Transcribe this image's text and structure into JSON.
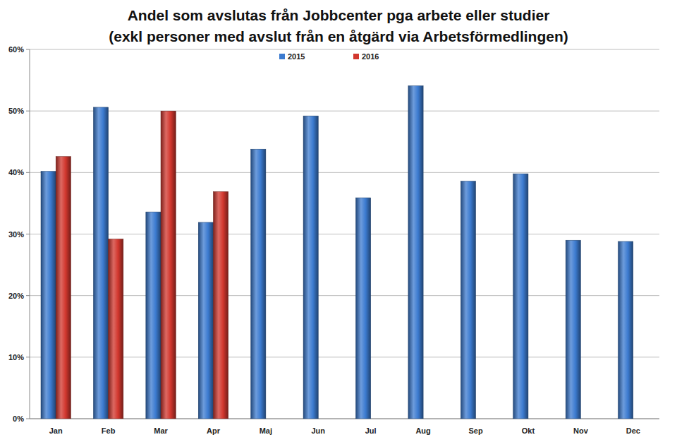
{
  "chart_data": {
    "type": "bar",
    "title": "Andel som avslutas från Jobbcenter pga arbete eller studier",
    "subtitle": "(exkl personer med avslut från en åtgärd via Arbetsförmedlingen)",
    "categories": [
      "Jan",
      "Feb",
      "Mar",
      "Apr",
      "Maj",
      "Jun",
      "Jul",
      "Aug",
      "Sep",
      "Okt",
      "Nov",
      "Dec"
    ],
    "series": [
      {
        "name": "2015",
        "color": "#3c7bd0",
        "values": [
          40.2,
          50.6,
          33.6,
          31.9,
          43.8,
          49.2,
          35.9,
          54.1,
          38.6,
          39.8,
          29.0,
          28.8
        ]
      },
      {
        "name": "2016",
        "color": "#d2372e",
        "values": [
          42.6,
          29.2,
          50.0,
          36.9,
          null,
          null,
          null,
          null,
          null,
          null,
          null,
          null
        ]
      }
    ],
    "ylim": [
      0,
      60
    ],
    "yticks": [
      {
        "value": 0,
        "label": "0%"
      },
      {
        "value": 10,
        "label": "10%"
      },
      {
        "value": 20,
        "label": "20%"
      },
      {
        "value": 30,
        "label": "30%"
      },
      {
        "value": 40,
        "label": "40%"
      },
      {
        "value": 50,
        "label": "50%"
      },
      {
        "value": 60,
        "label": "60%"
      }
    ],
    "grid": true,
    "legend": "top"
  }
}
